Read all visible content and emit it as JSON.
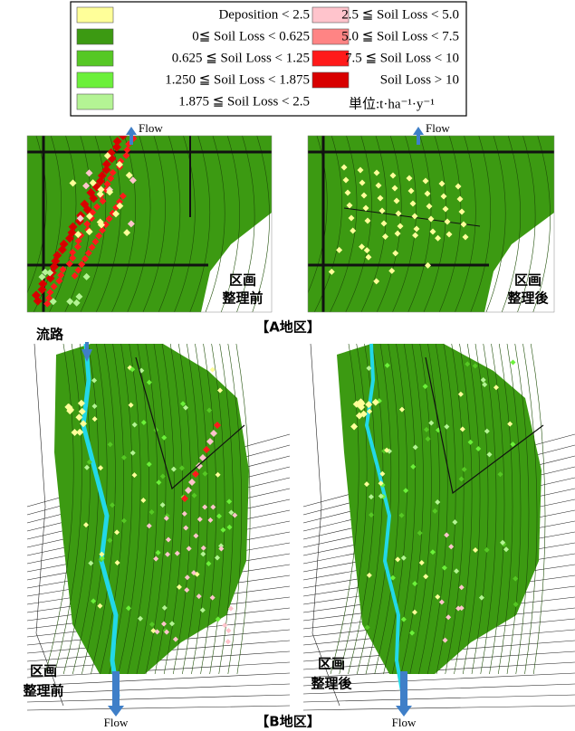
{
  "legend": {
    "items": [
      {
        "label": "Deposition < 2.5",
        "color": "#ffff99"
      },
      {
        "label": "0≦ Soil Loss < 0.625",
        "color": "#3c9a12"
      },
      {
        "label": "0.625 ≦ Soil Loss < 1.25",
        "color": "#56c824"
      },
      {
        "label": "1.250 ≦ Soil Loss < 1.875",
        "color": "#6cf03a"
      },
      {
        "label": "1.875 ≦ Soil Loss < 2.5",
        "color": "#b4f494"
      },
      {
        "label": "2.5 ≦ Soil Loss < 5.0",
        "color": "#ffc4cc"
      },
      {
        "label": "5.0 ≦ Soil Loss < 7.5",
        "color": "#ff8484"
      },
      {
        "label": "7.5 ≦ Soil Loss < 10",
        "color": "#ff1a1a"
      },
      {
        "label": "Soil Loss > 10",
        "color": "#d80000"
      }
    ],
    "unit": "単位:t·ha⁻¹·y⁻¹"
  },
  "panel_a": {
    "flow_labels": [
      "Flow",
      "Flow"
    ],
    "before_label": [
      "区画",
      "整理前"
    ],
    "after_label": [
      "区画",
      "整理後"
    ],
    "section_label": "【A地区】"
  },
  "panel_b": {
    "channel_label": "流路",
    "flow_labels": [
      "Flow",
      "Flow"
    ],
    "before_label": [
      "区画",
      "整理前"
    ],
    "after_label": [
      "区画",
      "整理後"
    ],
    "section_label": "【B地区】"
  }
}
